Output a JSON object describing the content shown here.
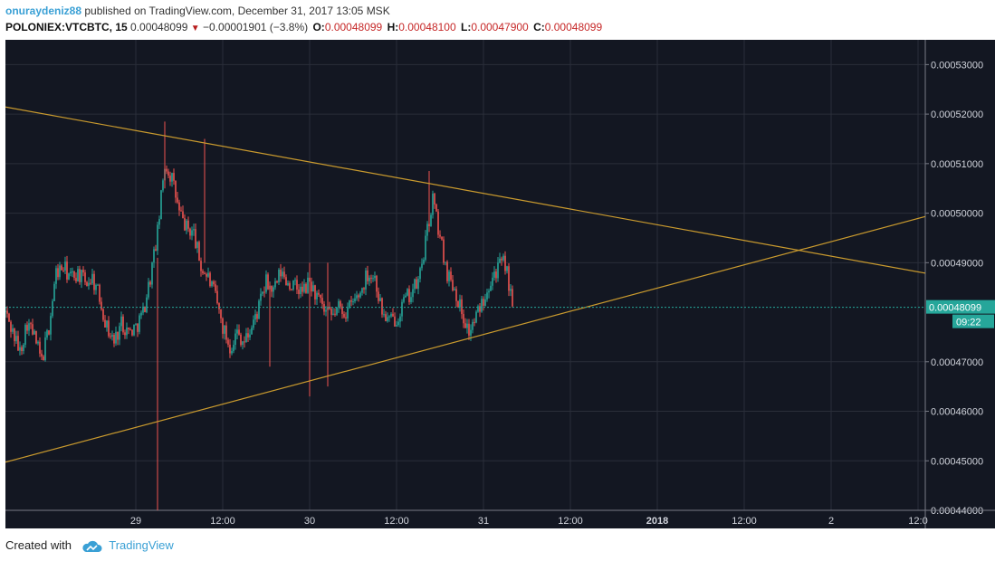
{
  "header": {
    "author": "onuraydeniz88",
    "published": "published on TradingView.com, December 31, 2017 13:05 MSK",
    "symbol": "POLONIEX:VTCBTC, 15",
    "last_price": "0.00048099",
    "change": "−0.00001901 (−3.8%)",
    "o_label": "O:",
    "o_value": "0.00048099",
    "h_label": "H:",
    "h_value": "0.00048100",
    "l_label": "L:",
    "l_value": "0.00047900",
    "c_label": "C:",
    "c_value": "0.00048099"
  },
  "footer": {
    "created_with": "Created with",
    "brand": "TradingView"
  },
  "colors": {
    "background": "#131722",
    "grid": "#2a2e39",
    "up": "#26a69a",
    "down": "#ef5350",
    "trendline": "#c99a2e",
    "last_price": "#26a69a"
  },
  "chart_data": {
    "type": "candlestick",
    "y_range": [
      0.00044,
      0.000535
    ],
    "y_ticks": [
      "0.00053000",
      "0.00052000",
      "0.00051000",
      "0.00050000",
      "0.00049000",
      "0.00048099",
      "0.00047000",
      "0.00046000",
      "0.00045000",
      "0.00044000"
    ],
    "x_ticks": [
      {
        "label": "29",
        "t": 18,
        "bold": false
      },
      {
        "label": "12:00",
        "t": 30,
        "bold": false
      },
      {
        "label": "30",
        "t": 42,
        "bold": false
      },
      {
        "label": "12:00",
        "t": 54,
        "bold": false
      },
      {
        "label": "31",
        "t": 66,
        "bold": false
      },
      {
        "label": "12:00",
        "t": 78,
        "bold": false
      },
      {
        "label": "2018",
        "t": 90,
        "bold": true
      },
      {
        "label": "12:00",
        "t": 102,
        "bold": false
      },
      {
        "label": "2",
        "t": 114,
        "bold": false
      },
      {
        "label": "12:0",
        "t": 126,
        "bold": false
      }
    ],
    "last_price": 0.00048099,
    "countdown": "09:22",
    "trendlines": [
      {
        "t1": 13,
        "p1": 0.000518,
        "t2": 66,
        "p2": 0.000504
      },
      {
        "t1": 13,
        "p1": 0.0004548,
        "t2": 66,
        "p2": 0.0004755
      }
    ],
    "price_path": [
      [
        0,
        0.00048
      ],
      [
        1,
        0.000476
      ],
      [
        2,
        0.000472
      ],
      [
        3,
        0.000478
      ],
      [
        4,
        0.000475
      ],
      [
        5,
        0.00047
      ],
      [
        6,
        0.000477
      ],
      [
        7,
        0.000488
      ],
      [
        8,
        0.000489
      ],
      [
        9,
        0.000487
      ],
      [
        10,
        0.000488
      ],
      [
        11,
        0.000486
      ],
      [
        12,
        0.000487
      ],
      [
        13,
        0.000483
      ],
      [
        14,
        0.000477
      ],
      [
        15,
        0.000474
      ],
      [
        16,
        0.000478
      ],
      [
        17,
        0.000476
      ],
      [
        18,
        0.000477
      ],
      [
        19,
        0.00048
      ],
      [
        20,
        0.000487
      ],
      [
        21,
        0.000496
      ],
      [
        22,
        0.00051
      ],
      [
        23,
        0.000507
      ],
      [
        24,
        0.0005
      ],
      [
        25,
        0.000497
      ],
      [
        26,
        0.000496
      ],
      [
        27,
        0.000489
      ],
      [
        28,
        0.000487
      ],
      [
        29,
        0.000483
      ],
      [
        30,
        0.000477
      ],
      [
        31,
        0.000473
      ],
      [
        32,
        0.000476
      ],
      [
        33,
        0.000474
      ],
      [
        34,
        0.000477
      ],
      [
        35,
        0.000481
      ],
      [
        36,
        0.000486
      ],
      [
        37,
        0.000484
      ],
      [
        38,
        0.000488
      ],
      [
        39,
        0.000486
      ],
      [
        40,
        0.000485
      ],
      [
        41,
        0.000484
      ],
      [
        42,
        0.000486
      ],
      [
        43,
        0.000483
      ],
      [
        44,
        0.00048
      ],
      [
        45,
        0.000479
      ],
      [
        46,
        0.000481
      ],
      [
        47,
        0.00048
      ],
      [
        48,
        0.000482
      ],
      [
        49,
        0.000484
      ],
      [
        50,
        0.000488
      ],
      [
        51,
        0.000487
      ],
      [
        52,
        0.00048
      ],
      [
        53,
        0.000478
      ],
      [
        54,
        0.000479
      ],
      [
        55,
        0.000482
      ],
      [
        56,
        0.000484
      ],
      [
        57,
        0.000486
      ],
      [
        58,
        0.000494
      ],
      [
        59,
        0.000503
      ],
      [
        60,
        0.000495
      ],
      [
        61,
        0.000488
      ],
      [
        62,
        0.000485
      ],
      [
        63,
        0.00048
      ],
      [
        64,
        0.000476
      ],
      [
        65,
        0.000479
      ],
      [
        66,
        0.000483
      ],
      [
        67,
        0.000487
      ],
      [
        68,
        0.000489
      ],
      [
        69,
        0.00049
      ],
      [
        70,
        0.000481
      ]
    ]
  }
}
